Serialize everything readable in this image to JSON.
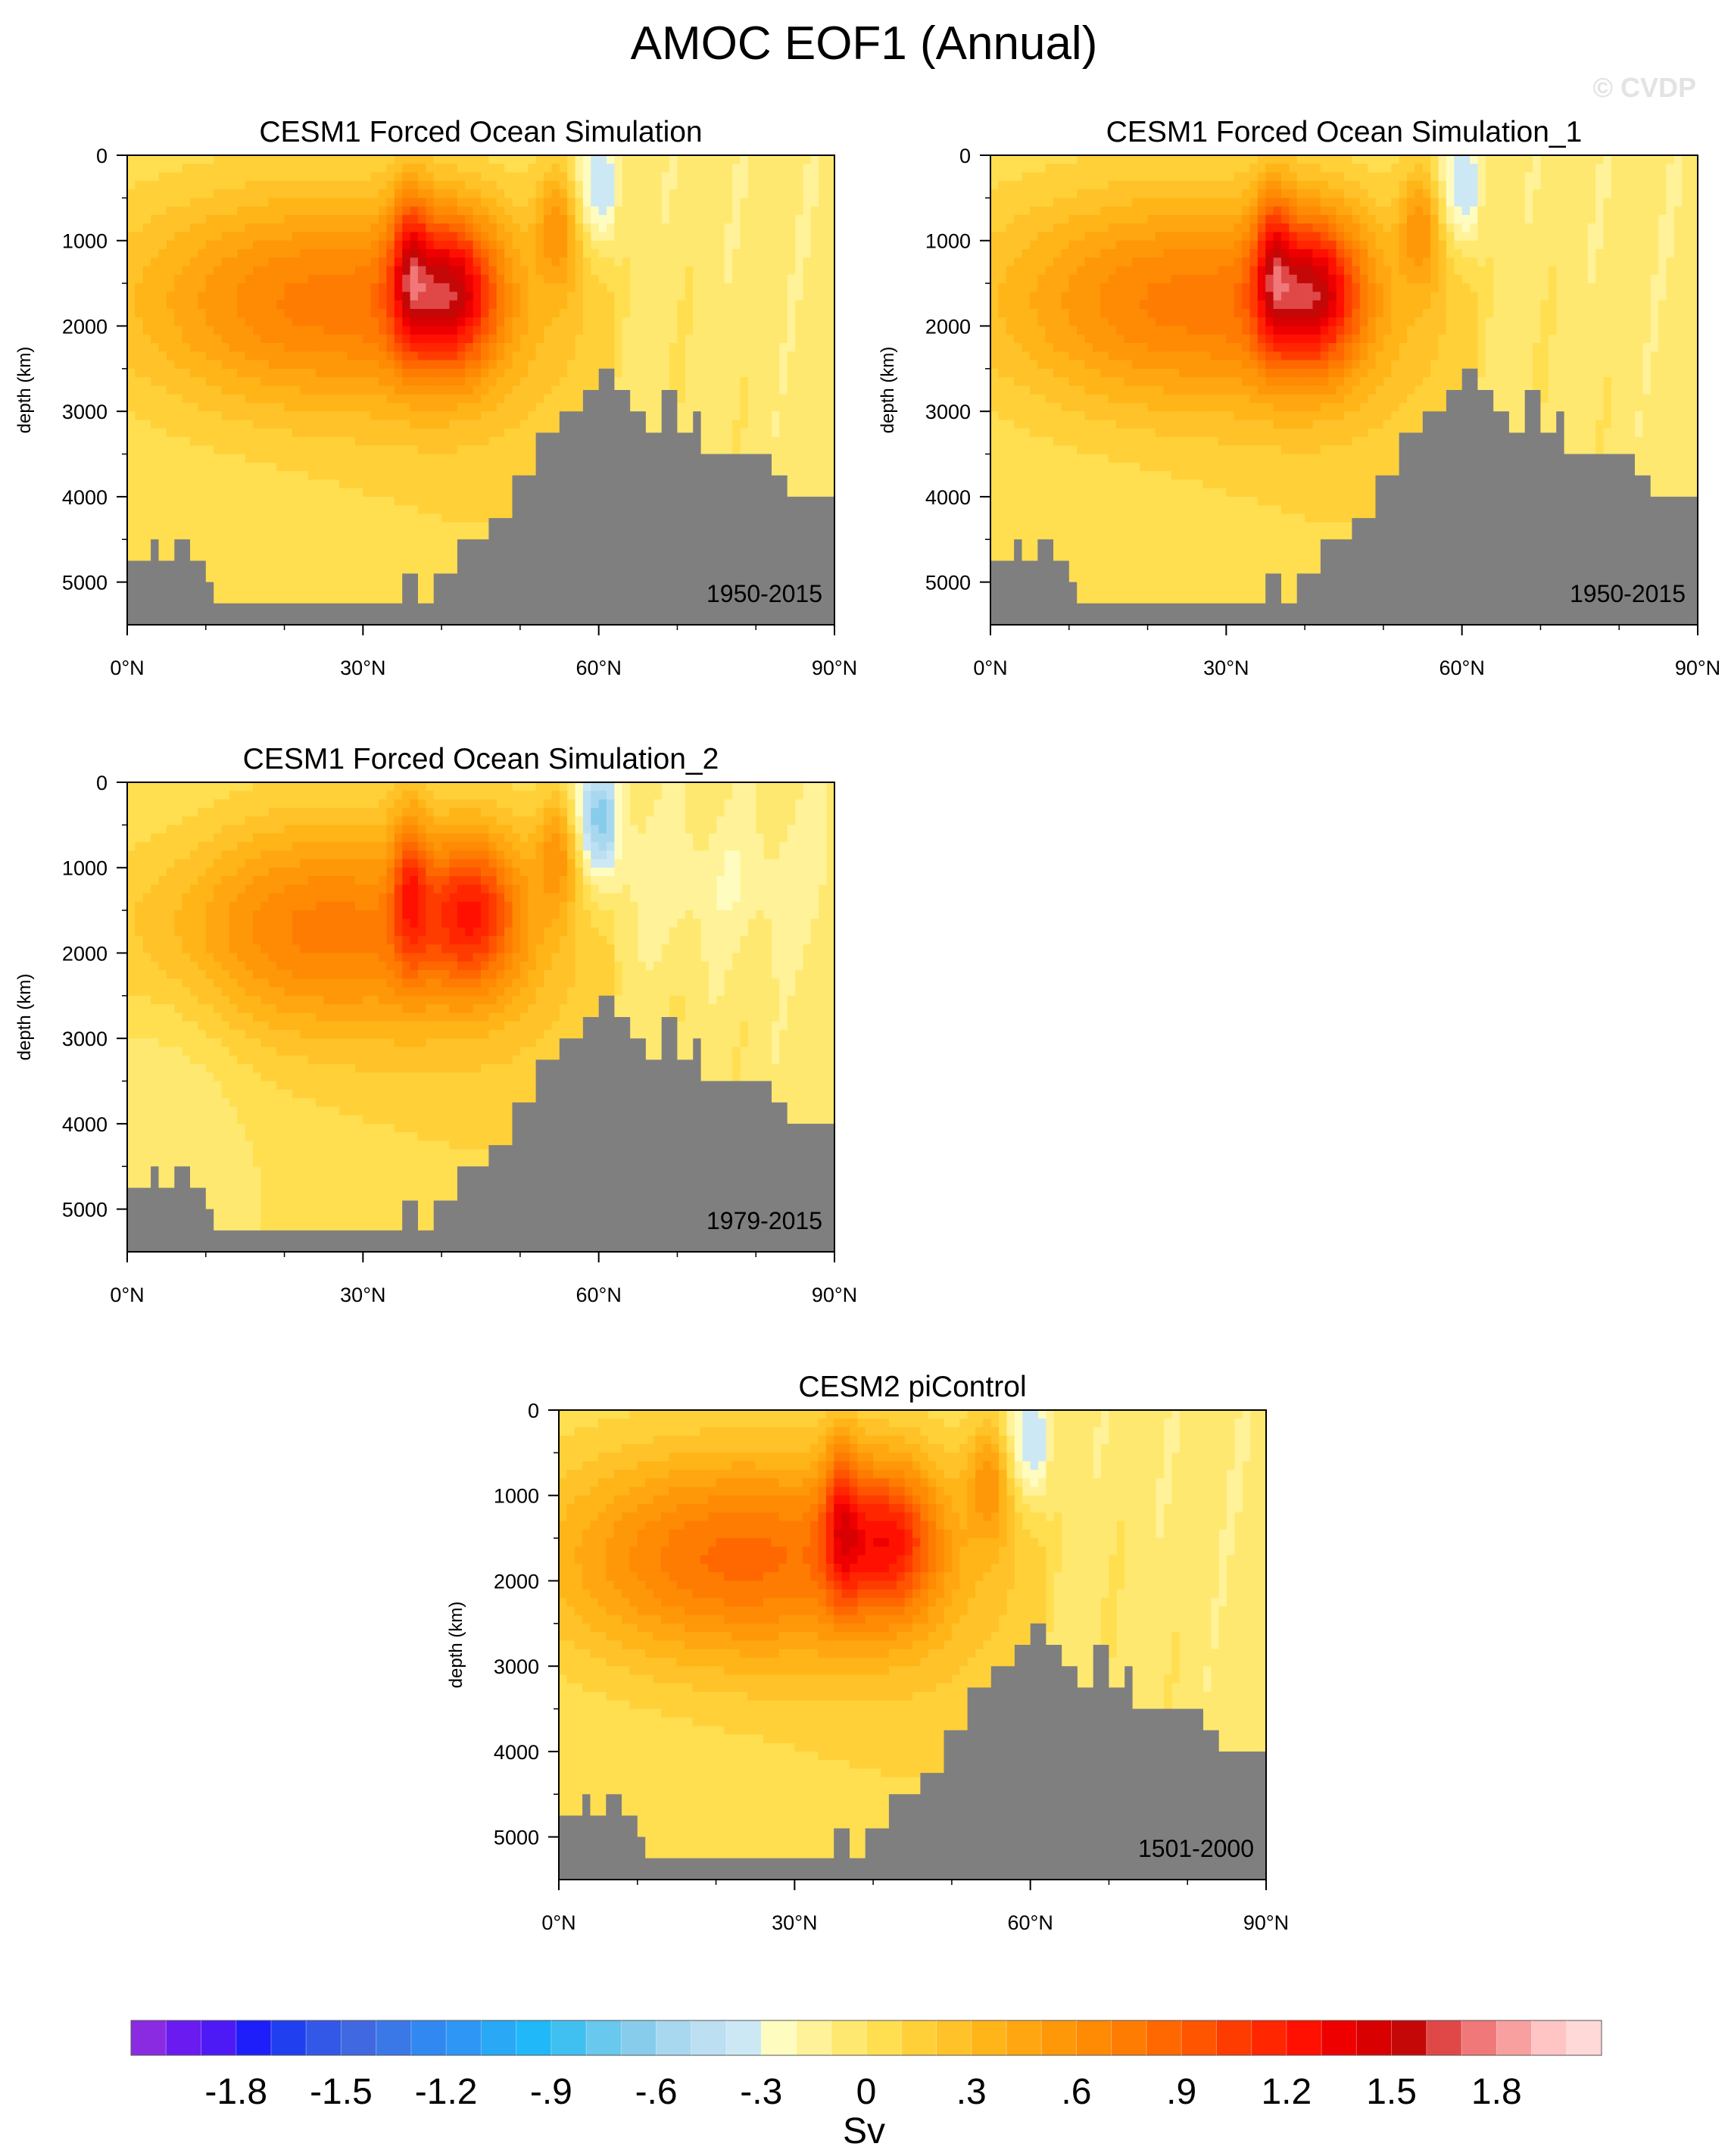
{
  "figure": {
    "title": "AMOC EOF1 (Annual)",
    "watermark": "© CVDP"
  },
  "chart_data": [
    {
      "type": "heatmap",
      "title": "CESM1 Forced Ocean Simulation",
      "period": "1950-2015",
      "ylabel": "depth (km)",
      "xlabel": "",
      "x_ticks": [
        "0°N",
        "30°N",
        "60°N",
        "90°N"
      ],
      "x_tick_values": [
        0,
        30,
        60,
        90
      ],
      "y_ticks": [
        "0",
        "1000",
        "2000",
        "3000",
        "4000",
        "5000"
      ],
      "y_tick_values": [
        0,
        1000,
        2000,
        3000,
        4000,
        5000
      ],
      "xlim": [
        0,
        90
      ],
      "ylim": [
        5500,
        0
      ],
      "peak_value_sv": 1.5,
      "peak_location": {
        "lat": 41,
        "depth": 1600
      }
    },
    {
      "type": "heatmap",
      "title": "CESM1 Forced Ocean Simulation_1",
      "period": "1950-2015",
      "ylabel": "depth (km)",
      "xlabel": "",
      "x_ticks": [
        "0°N",
        "30°N",
        "60°N",
        "90°N"
      ],
      "x_tick_values": [
        0,
        30,
        60,
        90
      ],
      "y_ticks": [
        "0",
        "1000",
        "2000",
        "3000",
        "4000",
        "5000"
      ],
      "y_tick_values": [
        0,
        1000,
        2000,
        3000,
        4000,
        5000
      ],
      "xlim": [
        0,
        90
      ],
      "ylim": [
        5500,
        0
      ],
      "peak_value_sv": 1.5,
      "peak_location": {
        "lat": 41,
        "depth": 1600
      }
    },
    {
      "type": "heatmap",
      "title": "CESM1 Forced Ocean Simulation_2",
      "period": "1979-2015",
      "ylabel": "depth (km)",
      "xlabel": "",
      "x_ticks": [
        "0°N",
        "30°N",
        "60°N",
        "90°N"
      ],
      "x_tick_values": [
        0,
        30,
        60,
        90
      ],
      "y_ticks": [
        "0",
        "1000",
        "2000",
        "3000",
        "4000",
        "5000"
      ],
      "y_tick_values": [
        0,
        1000,
        2000,
        3000,
        4000,
        5000
      ],
      "xlim": [
        0,
        90
      ],
      "ylim": [
        5500,
        0
      ],
      "peak_value_sv": 1.2,
      "peak_location": {
        "lat": 44,
        "depth": 1500
      }
    },
    {
      "type": "heatmap",
      "title": "CESM2 piControl",
      "period": "1501-2000",
      "ylabel": "depth (km)",
      "xlabel": "",
      "x_ticks": [
        "0°N",
        "30°N",
        "60°N",
        "90°N"
      ],
      "x_tick_values": [
        0,
        30,
        60,
        90
      ],
      "y_ticks": [
        "0",
        "1000",
        "2000",
        "3000",
        "4000",
        "5000"
      ],
      "y_tick_values": [
        0,
        1000,
        2000,
        3000,
        4000,
        5000
      ],
      "xlim": [
        0,
        90
      ],
      "ylim": [
        5500,
        0
      ],
      "peak_value_sv": 1.2,
      "peak_location": {
        "lat": 42,
        "depth": 1500
      }
    }
  ],
  "colorbar": {
    "label": "Sv",
    "min": -2.1,
    "max": 2.1,
    "step": 0.1,
    "tick_labels": [
      "-1.8",
      "-1.5",
      "-1.2",
      "-.9",
      "-.6",
      "-.3",
      "0",
      ".3",
      ".6",
      ".9",
      "1.2",
      "1.5",
      "1.8"
    ],
    "tick_values": [
      -1.8,
      -1.5,
      -1.2,
      -0.9,
      -0.6,
      -0.3,
      0,
      0.3,
      0.6,
      0.9,
      1.2,
      1.5,
      1.8
    ],
    "colors": [
      "#8a2be2",
      "#6a1cf0",
      "#4d1af5",
      "#1e1efa",
      "#2040f0",
      "#3358e8",
      "#4068e0",
      "#3a78e8",
      "#3088f0",
      "#2e96f5",
      "#28a8f5",
      "#20b8f8",
      "#40c0f0",
      "#68c8ee",
      "#88ccec",
      "#a8d8f0",
      "#bcdff2",
      "#cce8f4",
      "#fffcc0",
      "#fff298",
      "#ffe870",
      "#ffde50",
      "#ffd038",
      "#ffc228",
      "#ffb418",
      "#ffa610",
      "#ff9808",
      "#ff8a04",
      "#ff7c02",
      "#ff6800",
      "#ff5400",
      "#ff3c00",
      "#ff2600",
      "#ff1000",
      "#ee0000",
      "#d80000",
      "#c40808",
      "#e04848",
      "#f07878",
      "#f8a0a0",
      "#ffc4c4",
      "#ffd8d8"
    ]
  },
  "bathymetry_color": "#7f7f7f"
}
